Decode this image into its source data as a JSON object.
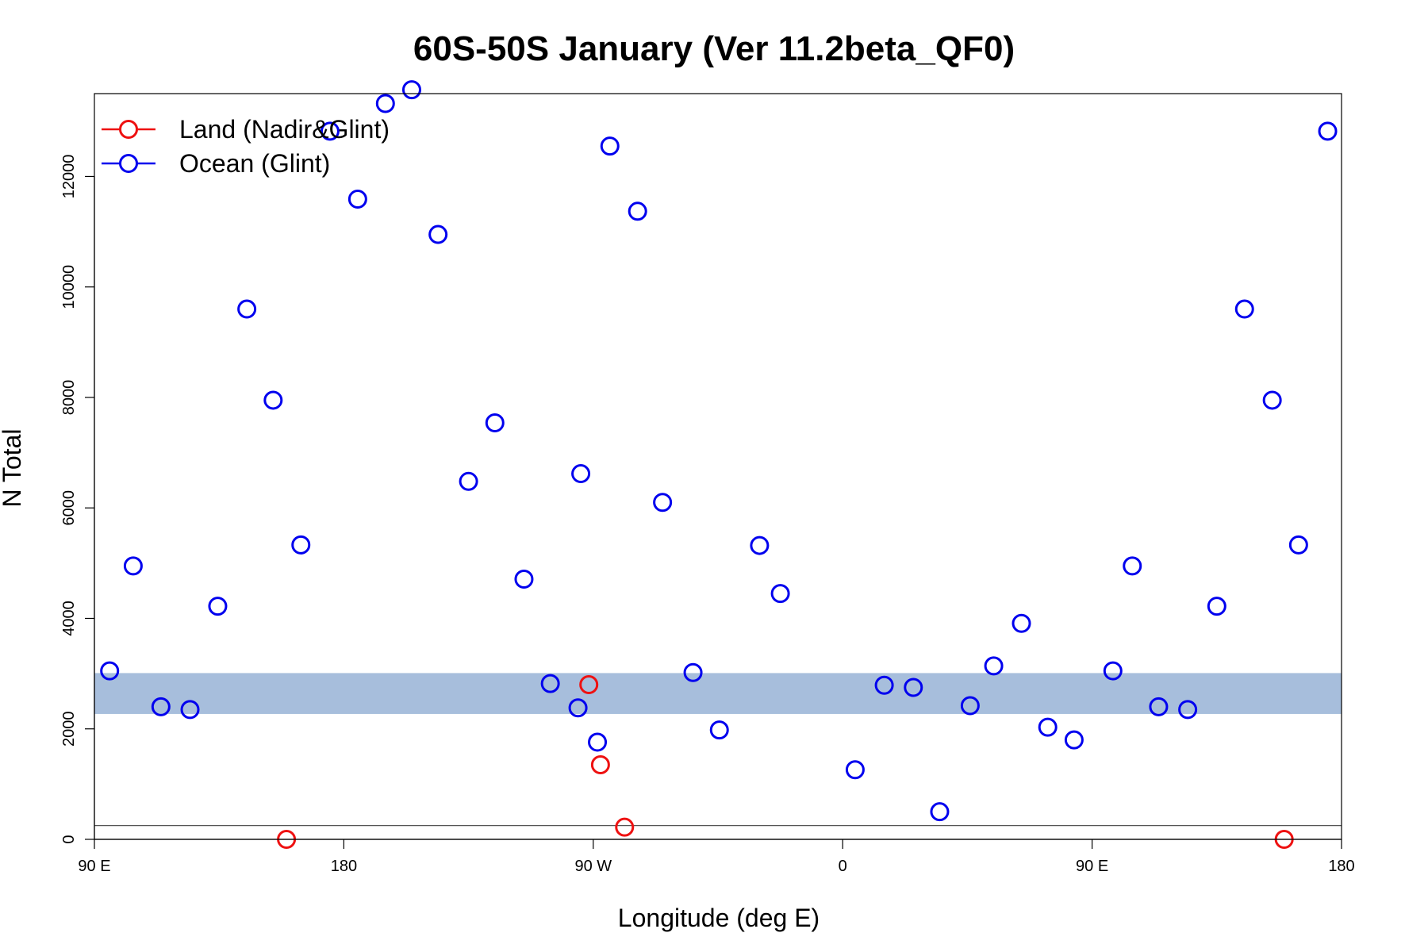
{
  "chart_data": {
    "type": "scatter",
    "title": "60S-50S January (Ver 11.2beta_QF0)",
    "xlabel": "Longitude (deg E)",
    "ylabel": "N Total",
    "xlim": [
      90,
      540
    ],
    "ylim": [
      0,
      13500
    ],
    "x_ticks": [
      {
        "value": 90,
        "label": "90 E"
      },
      {
        "value": 180,
        "label": "180"
      },
      {
        "value": 270,
        "label": "90 W"
      },
      {
        "value": 360,
        "label": "0"
      },
      {
        "value": 450,
        "label": "90 E"
      },
      {
        "value": 540,
        "label": "180"
      }
    ],
    "y_ticks": [
      {
        "value": 0,
        "label": "0"
      },
      {
        "value": 2000,
        "label": "2000"
      },
      {
        "value": 4000,
        "label": "4000"
      },
      {
        "value": 6000,
        "label": "6000"
      },
      {
        "value": 8000,
        "label": "8000"
      },
      {
        "value": 10000,
        "label": "10000"
      },
      {
        "value": 12000,
        "label": "12000"
      }
    ],
    "grid": false,
    "legend_position": "top-left",
    "band": {
      "y_min": 2270,
      "y_max": 3010,
      "color": "#a7bedc"
    },
    "reference_line": {
      "y": 250,
      "color": "#555555"
    },
    "series": [
      {
        "name": "Land (Nadir&Glint)",
        "color": "#ee1111",
        "x": [
          159.3,
          268.4,
          272.6,
          281.3,
          519.3
        ],
        "y": [
          0,
          2800,
          1350,
          220,
          0
        ]
      },
      {
        "name": "Ocean (Glint)",
        "color": "#0000ee",
        "x": [
          95.5,
          104.0,
          114.0,
          124.5,
          134.5,
          145.0,
          154.5,
          164.5,
          175.0,
          185.0,
          195.0,
          204.5,
          214.0,
          225.0,
          234.5,
          245.0,
          254.5,
          264.5,
          265.5,
          271.5,
          276.0,
          286.0,
          295.0,
          306.0,
          315.5,
          330.0,
          337.5,
          364.5,
          375.0,
          385.5,
          395.0,
          406.0,
          414.5,
          424.5,
          434.0,
          443.5,
          457.5,
          464.5,
          474.0,
          484.5,
          495.0,
          505.0,
          515.0,
          524.5,
          535.0
        ],
        "y": [
          3050,
          4950,
          2400,
          2350,
          4220,
          9600,
          7950,
          5330,
          12820,
          11590,
          13320,
          13570,
          10950,
          6480,
          7540,
          4710,
          2820,
          2380,
          6620,
          1760,
          12550,
          11370,
          6100,
          3020,
          1980,
          5320,
          4450,
          1260,
          2790,
          2750,
          500,
          2420,
          3140,
          3910,
          2030,
          1800,
          3050,
          4950,
          2400,
          2350,
          4220,
          9600,
          7950,
          5330,
          12820
        ]
      }
    ]
  }
}
